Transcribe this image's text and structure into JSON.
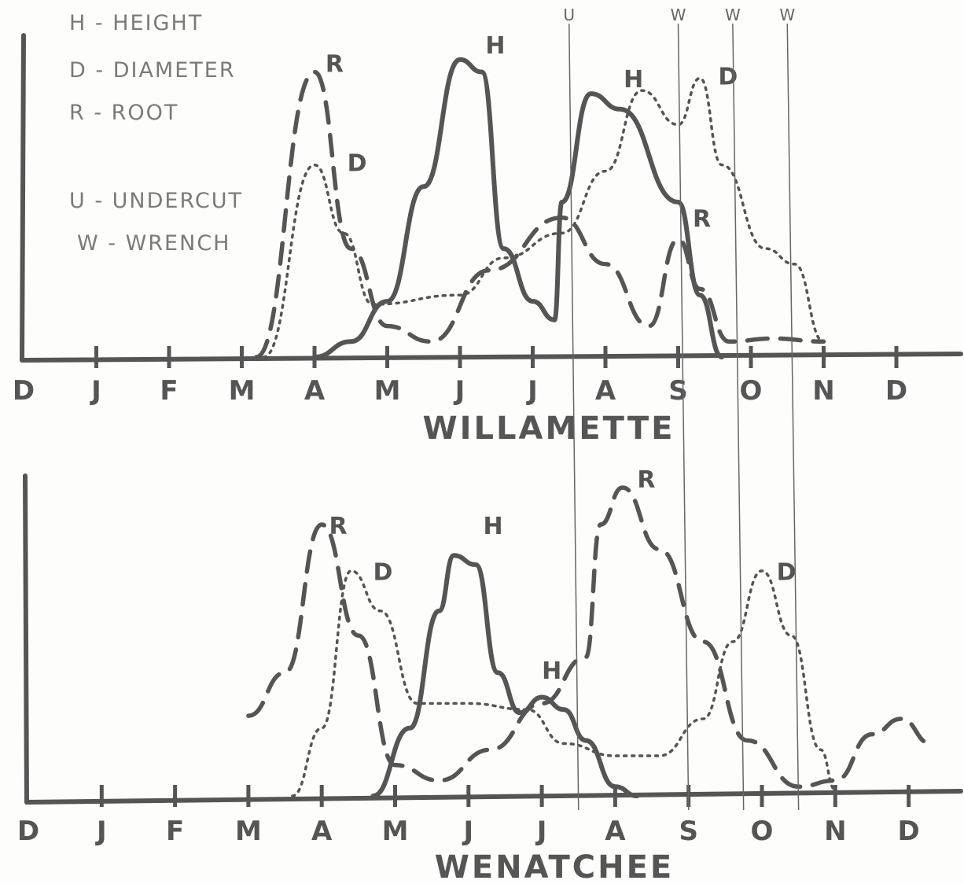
{
  "legend": {
    "items": [
      {
        "text": "H - HEIGHT"
      },
      {
        "text": "D - DIAMETER"
      },
      {
        "text": "R - ROOT"
      },
      {
        "text": "U - UNDERCUT"
      },
      {
        "text": "W - WRENCH"
      }
    ]
  },
  "colors": {
    "ink": "#555555",
    "paper": "#fdfdfb"
  },
  "chart_data": [
    {
      "type": "line",
      "title": "WILLAMETTE",
      "categories": [
        "D",
        "J",
        "F",
        "M",
        "A",
        "M",
        "J",
        "J",
        "A",
        "S",
        "O",
        "N",
        "D"
      ],
      "x_unit": "month index (0 = December of previous year)",
      "y_unit": "relative growth (0-1, unlabeled axis)",
      "ylim": [
        0,
        1
      ],
      "series": [
        {
          "name": "H",
          "style": "solid",
          "points": [
            [
              4.0,
              0.0
            ],
            [
              4.5,
              0.05
            ],
            [
              5.0,
              0.18
            ],
            [
              5.5,
              0.55
            ],
            [
              6.0,
              0.96
            ],
            [
              6.3,
              0.92
            ],
            [
              6.6,
              0.35
            ],
            [
              7.0,
              0.18
            ],
            [
              7.3,
              0.12
            ],
            [
              7.4,
              0.5
            ],
            [
              7.8,
              0.85
            ],
            [
              8.2,
              0.8
            ],
            [
              9.0,
              0.5
            ],
            [
              9.3,
              0.2
            ],
            [
              9.6,
              0.0
            ]
          ]
        },
        {
          "name": "D",
          "style": "dotted",
          "points": [
            [
              3.3,
              0.0
            ],
            [
              4.0,
              0.62
            ],
            [
              4.4,
              0.4
            ],
            [
              4.8,
              0.17
            ],
            [
              6.0,
              0.2
            ],
            [
              6.6,
              0.32
            ],
            [
              7.4,
              0.4
            ],
            [
              8.0,
              0.6
            ],
            [
              8.5,
              0.86
            ],
            [
              9.0,
              0.75
            ],
            [
              9.3,
              0.9
            ],
            [
              9.6,
              0.62
            ],
            [
              10.2,
              0.35
            ],
            [
              10.6,
              0.3
            ],
            [
              11.0,
              0.05
            ]
          ]
        },
        {
          "name": "R",
          "style": "dashed",
          "points": [
            [
              3.2,
              0.0
            ],
            [
              4.0,
              0.92
            ],
            [
              4.5,
              0.35
            ],
            [
              5.0,
              0.1
            ],
            [
              5.6,
              0.05
            ],
            [
              6.4,
              0.28
            ],
            [
              7.4,
              0.45
            ],
            [
              8.0,
              0.3
            ],
            [
              8.6,
              0.1
            ],
            [
              9.0,
              0.38
            ],
            [
              9.3,
              0.22
            ],
            [
              9.7,
              0.05
            ],
            [
              10.3,
              0.06
            ],
            [
              11.0,
              0.05
            ]
          ]
        }
      ],
      "labels": [
        {
          "text": "H",
          "series": "H"
        },
        {
          "text": "H",
          "series": "H"
        },
        {
          "text": "D",
          "series": "D"
        },
        {
          "text": "D",
          "series": "D"
        },
        {
          "text": "R",
          "series": "R"
        },
        {
          "text": "R",
          "series": "R"
        }
      ],
      "markers": [
        {
          "text": "U",
          "x": 7.5
        },
        {
          "text": "W",
          "x": 9.0
        },
        {
          "text": "W",
          "x": 9.75
        },
        {
          "text": "W",
          "x": 10.5
        }
      ]
    },
    {
      "type": "line",
      "title": "WENATCHEE",
      "categories": [
        "D",
        "J",
        "F",
        "M",
        "A",
        "M",
        "J",
        "J",
        "A",
        "S",
        "O",
        "N",
        "D"
      ],
      "x_unit": "month index (0 = December of previous year)",
      "y_unit": "relative growth (0-1, unlabeled axis)",
      "ylim": [
        0,
        1
      ],
      "series": [
        {
          "name": "H",
          "style": "solid",
          "points": [
            [
              4.7,
              0.0
            ],
            [
              5.2,
              0.22
            ],
            [
              5.6,
              0.6
            ],
            [
              5.8,
              0.78
            ],
            [
              6.1,
              0.75
            ],
            [
              6.4,
              0.4
            ],
            [
              6.7,
              0.27
            ],
            [
              7.0,
              0.32
            ],
            [
              7.3,
              0.28
            ],
            [
              7.6,
              0.18
            ],
            [
              8.0,
              0.03
            ],
            [
              8.3,
              0.0
            ]
          ]
        },
        {
          "name": "D",
          "style": "dotted",
          "points": [
            [
              3.6,
              0.0
            ],
            [
              4.0,
              0.22
            ],
            [
              4.4,
              0.73
            ],
            [
              4.8,
              0.6
            ],
            [
              5.3,
              0.3
            ],
            [
              6.0,
              0.3
            ],
            [
              6.8,
              0.28
            ],
            [
              7.3,
              0.17
            ],
            [
              8.0,
              0.13
            ],
            [
              8.6,
              0.13
            ],
            [
              9.2,
              0.25
            ],
            [
              9.6,
              0.5
            ],
            [
              10.0,
              0.73
            ],
            [
              10.4,
              0.52
            ],
            [
              10.8,
              0.15
            ],
            [
              11.0,
              0.02
            ]
          ]
        },
        {
          "name": "R",
          "style": "dashed",
          "points": [
            [
              3.0,
              0.26
            ],
            [
              3.5,
              0.4
            ],
            [
              4.0,
              0.88
            ],
            [
              4.5,
              0.52
            ],
            [
              5.0,
              0.1
            ],
            [
              5.6,
              0.05
            ],
            [
              6.3,
              0.15
            ],
            [
              7.0,
              0.3
            ],
            [
              7.6,
              0.45
            ],
            [
              7.8,
              0.88
            ],
            [
              8.1,
              1.0
            ],
            [
              8.6,
              0.8
            ],
            [
              9.2,
              0.5
            ],
            [
              9.8,
              0.18
            ],
            [
              10.5,
              0.03
            ],
            [
              11.0,
              0.05
            ],
            [
              11.5,
              0.2
            ],
            [
              11.9,
              0.25
            ],
            [
              12.3,
              0.17
            ]
          ]
        }
      ],
      "labels": [
        {
          "text": "H",
          "series": "H"
        },
        {
          "text": "H",
          "series": "H"
        },
        {
          "text": "D",
          "series": "D"
        },
        {
          "text": "D",
          "series": "D"
        },
        {
          "text": "R",
          "series": "R"
        },
        {
          "text": "R",
          "series": "R"
        }
      ]
    }
  ]
}
